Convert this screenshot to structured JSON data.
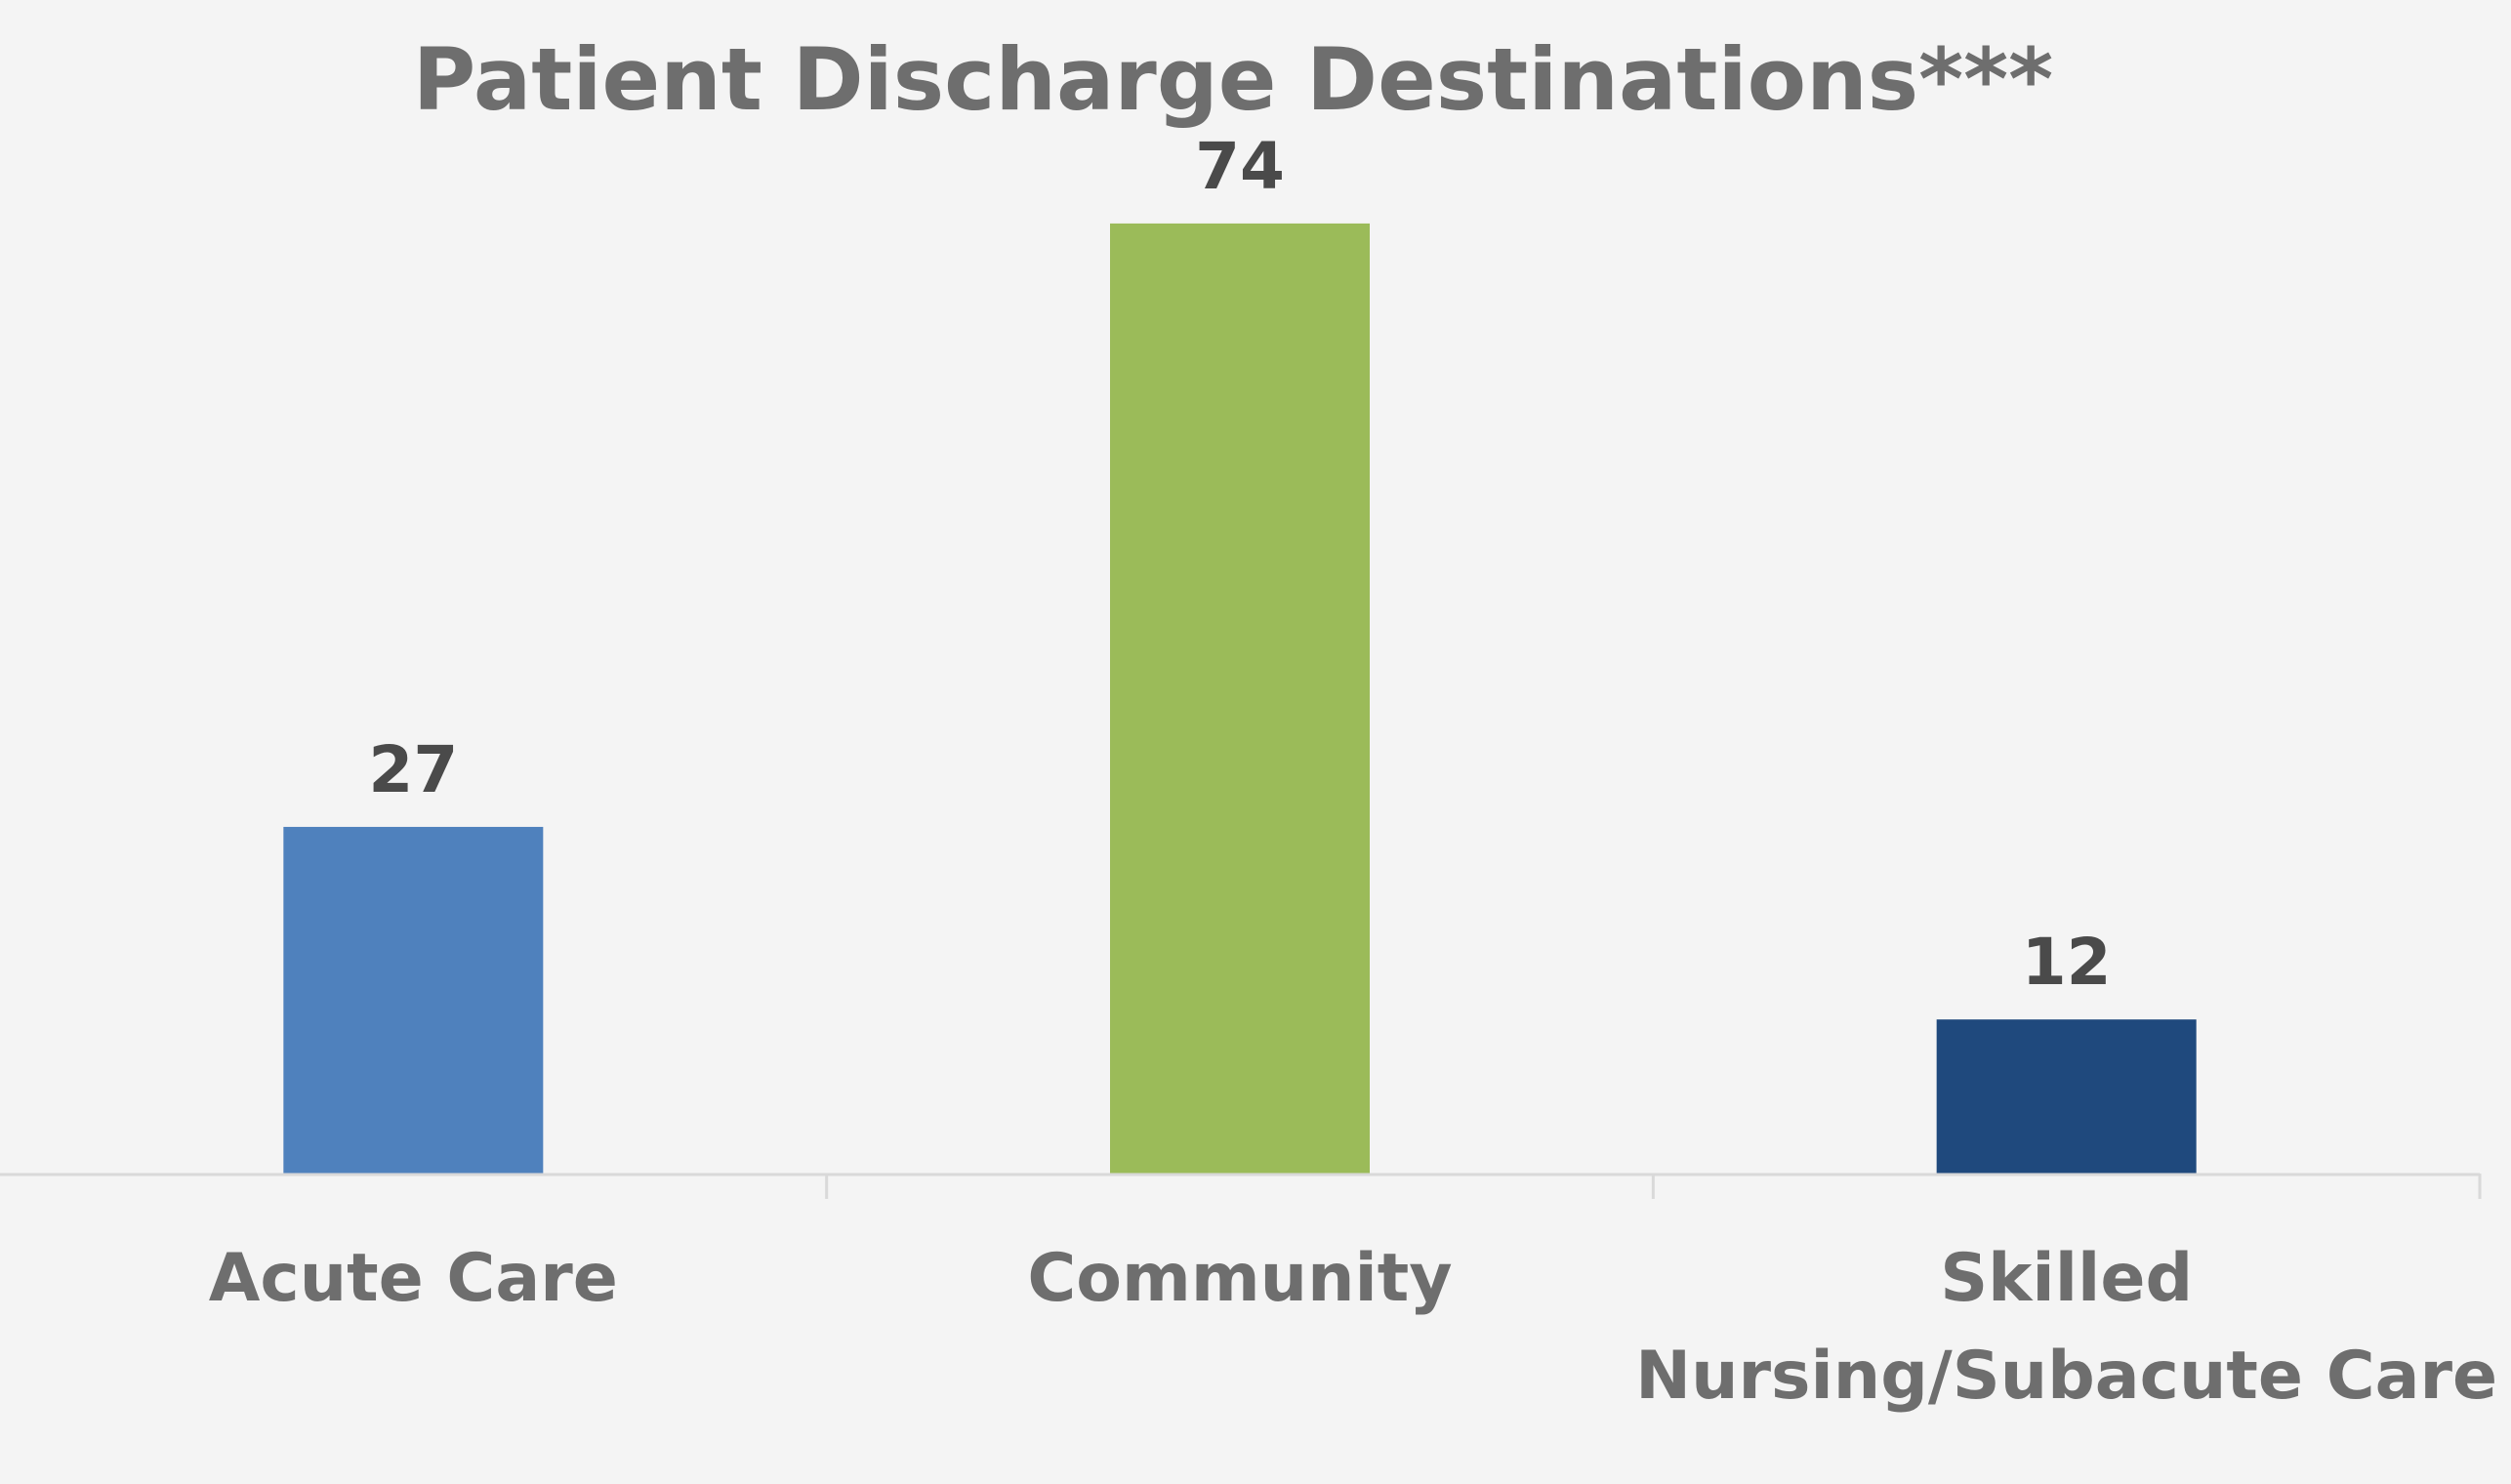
{
  "chart_data": {
    "type": "bar",
    "title": "Patient Discharge Destinations***",
    "categories": [
      [
        "Acute Care"
      ],
      [
        "Community"
      ],
      [
        "Skilled",
        "Nursing/Subacute Care"
      ]
    ],
    "values": [
      27,
      74,
      12
    ],
    "colors": [
      "#4f81bd",
      "#9bbb59",
      "#1f497d"
    ],
    "xlabel": "",
    "ylabel": "",
    "ylim": [
      0,
      80
    ],
    "grid": false,
    "legend": "none",
    "axis_color": "#d9d9d9"
  }
}
